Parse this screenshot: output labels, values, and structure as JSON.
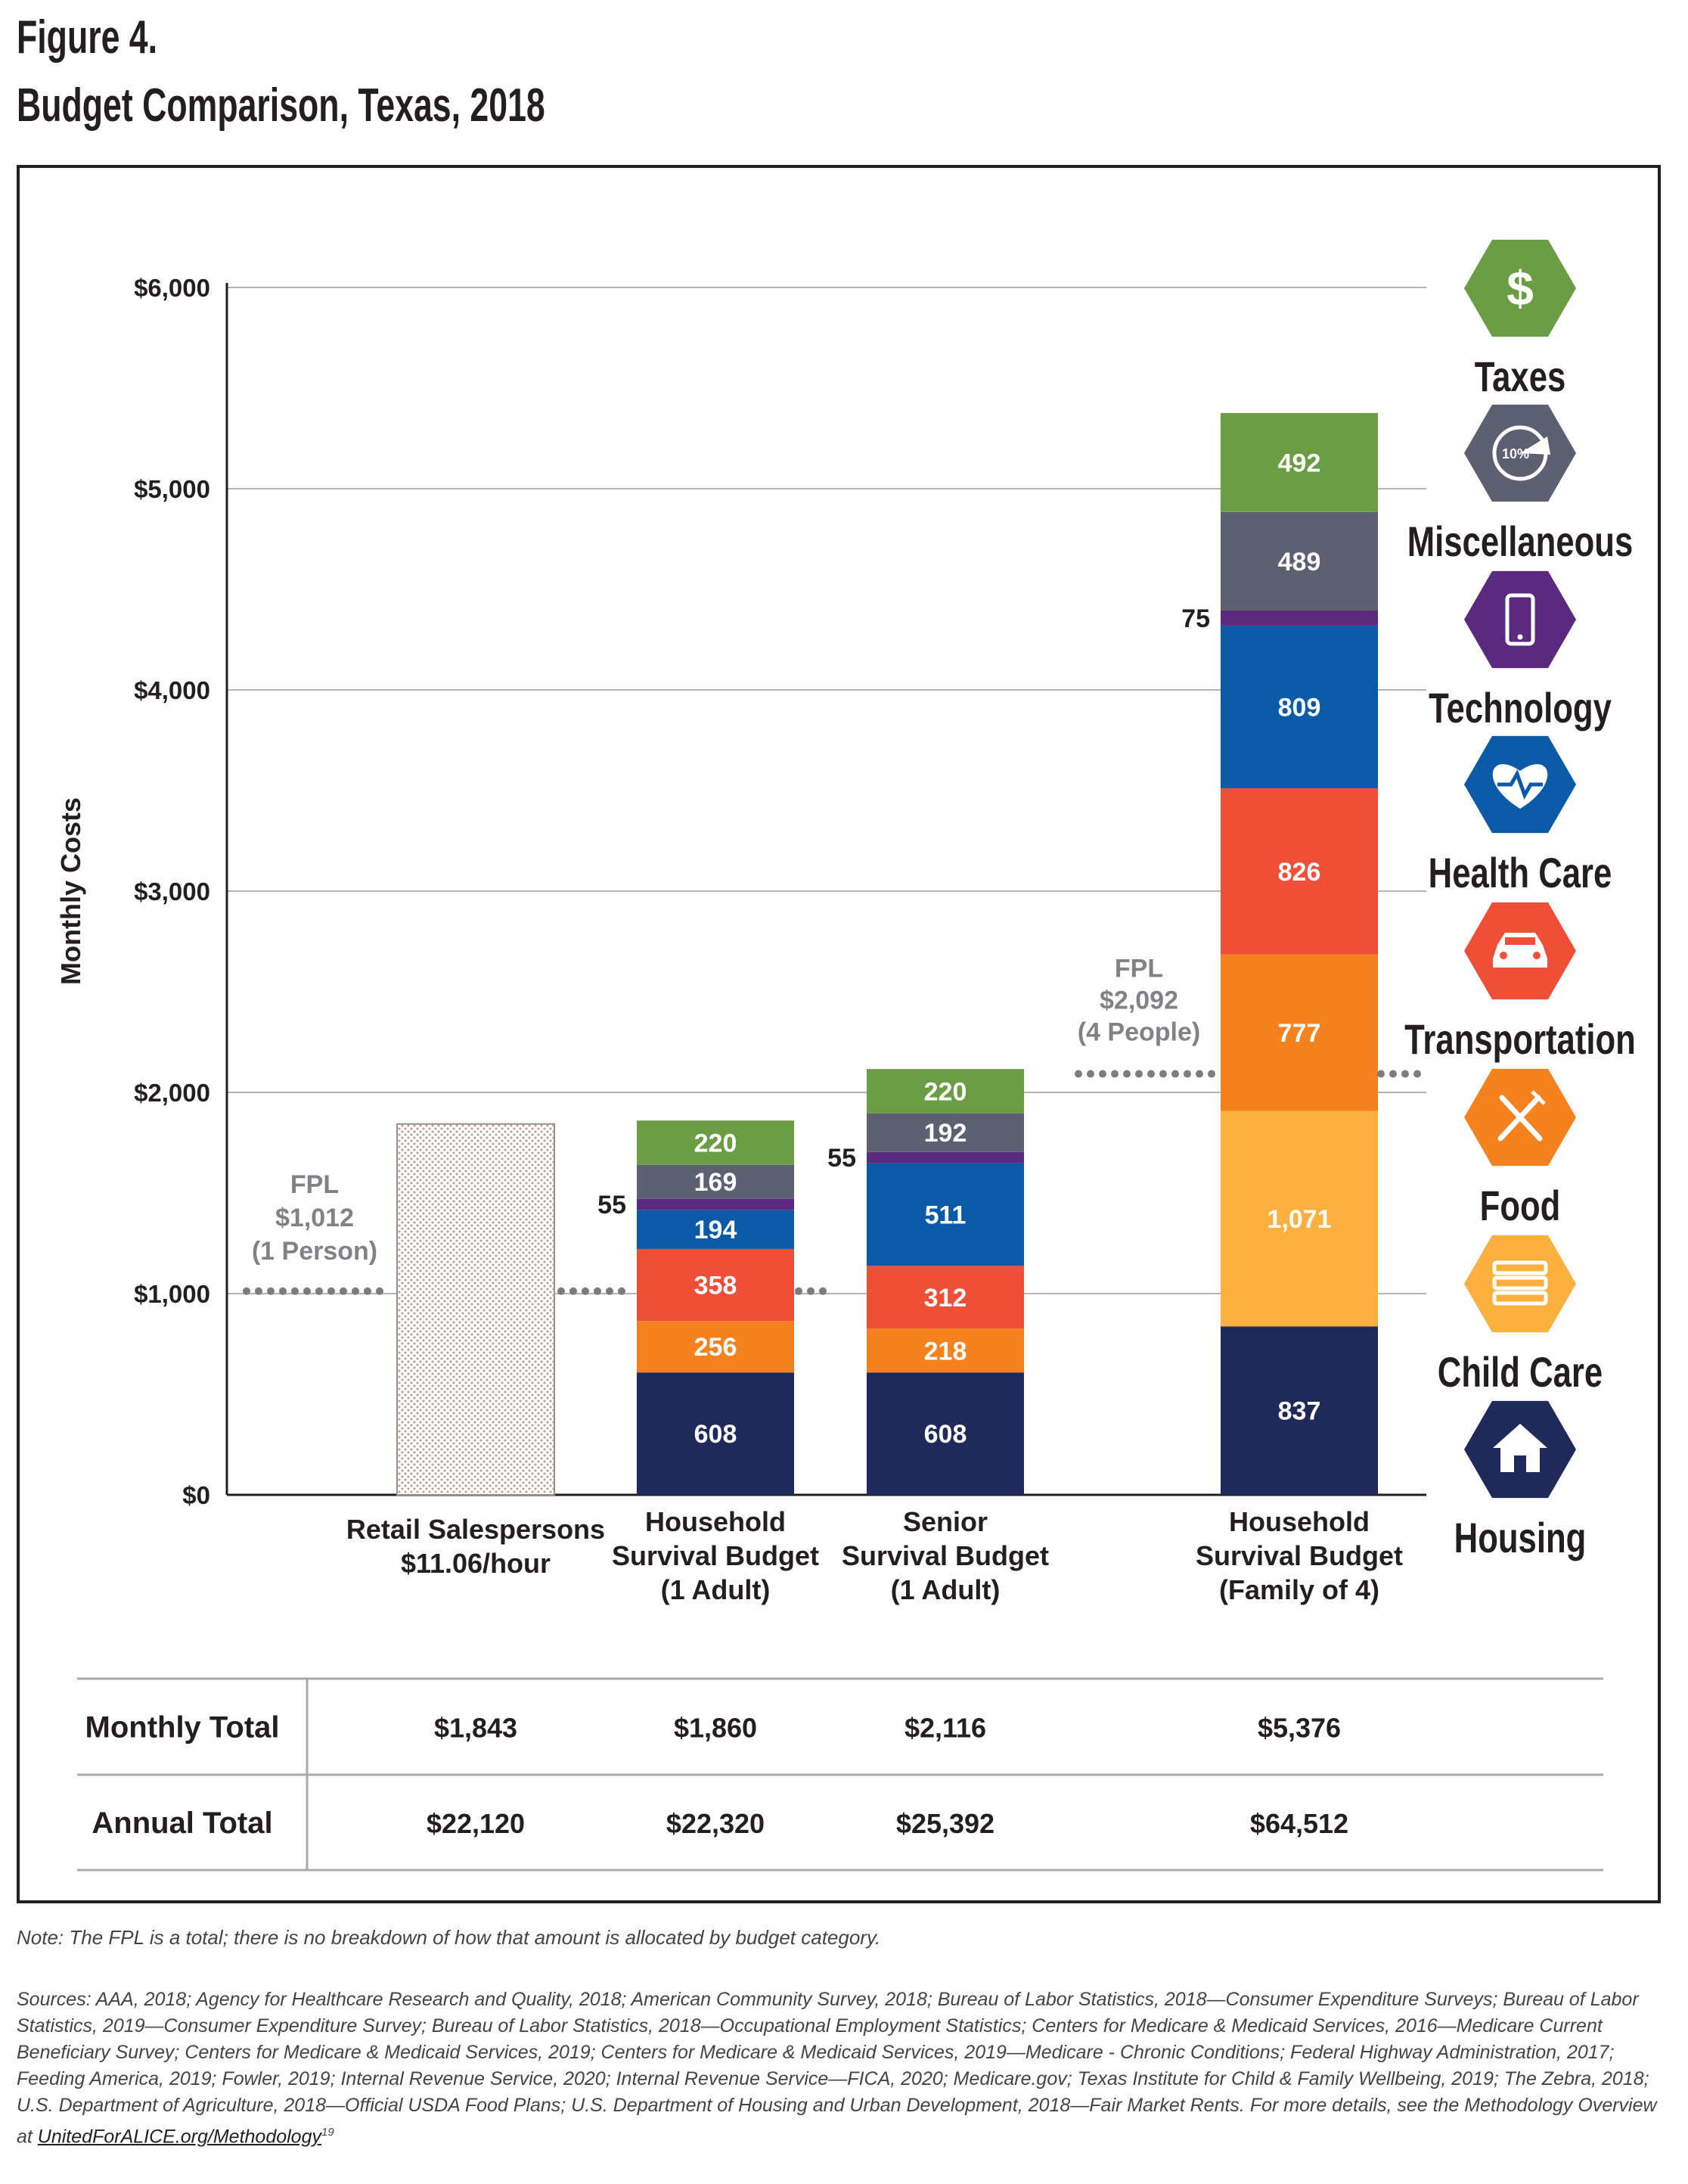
{
  "figure_number": "Figure 4.",
  "title": "Budget Comparison, Texas, 2018",
  "chart_data": {
    "type": "bar",
    "stacked": true,
    "title": "Budget Comparison, Texas, 2018",
    "ylabel": "Monthly Costs",
    "ylim": [
      0,
      6000
    ],
    "yticks": [
      0,
      1000,
      2000,
      3000,
      4000,
      5000,
      6000
    ],
    "ytick_labels": [
      "$0",
      "$1,000",
      "$2,000",
      "$3,000",
      "$4,000",
      "$5,000",
      "$6,000"
    ],
    "grid": true,
    "categories": [
      [
        "Retail Salespersons",
        "$11.06/hour"
      ],
      [
        "Household",
        "Survival Budget",
        "(1 Adult)"
      ],
      [
        "Senior",
        "Survival Budget",
        "(1 Adult)"
      ],
      [
        "Household",
        "Survival Budget",
        "(Family of 4)"
      ]
    ],
    "wage_bar": {
      "category": 0,
      "value": 1843
    },
    "series": [
      {
        "name": "Housing",
        "color": "#1f2a5a",
        "values": [
          null,
          608,
          608,
          837
        ],
        "labels": [
          "",
          "608",
          "608",
          "837"
        ]
      },
      {
        "name": "Child Care",
        "color": "#fbb040",
        "values": [
          null,
          0,
          0,
          1071
        ],
        "labels": [
          "",
          "",
          "",
          "1,071"
        ]
      },
      {
        "name": "Food",
        "color": "#f5821f",
        "values": [
          null,
          256,
          218,
          777
        ],
        "labels": [
          "",
          "256",
          "218",
          "777"
        ]
      },
      {
        "name": "Transportation",
        "color": "#ef4e37",
        "values": [
          null,
          358,
          312,
          826
        ],
        "labels": [
          "",
          "358",
          "312",
          "826"
        ]
      },
      {
        "name": "Health Care",
        "color": "#0b5aa8",
        "values": [
          null,
          194,
          511,
          809
        ],
        "labels": [
          "",
          "194",
          "511",
          "809"
        ]
      },
      {
        "name": "Technology",
        "color": "#5b2a7e",
        "values": [
          null,
          55,
          55,
          75
        ],
        "labels": [
          "",
          "55",
          "55",
          "75"
        ]
      },
      {
        "name": "Miscellaneous",
        "color": "#5c6070",
        "values": [
          null,
          169,
          192,
          489
        ],
        "labels": [
          "",
          "169",
          "192",
          "489"
        ]
      },
      {
        "name": "Taxes",
        "color": "#6b9d45",
        "values": [
          null,
          220,
          220,
          492
        ],
        "labels": [
          "",
          "220",
          "220",
          "492"
        ]
      }
    ],
    "fpl_lines": [
      {
        "label_lines": [
          "FPL",
          "$1,012",
          "(1 Person)"
        ],
        "value": 1012
      },
      {
        "label_lines": [
          "FPL",
          "$2,092",
          "(4 People)"
        ],
        "value": 2092
      }
    ],
    "legend": {
      "placement": "right",
      "items": [
        {
          "name": "Taxes",
          "color": "#6b9d45",
          "icon": "dollar-icon"
        },
        {
          "name": "Miscellaneous",
          "color": "#5c6070",
          "icon": "percent-gauge-icon"
        },
        {
          "name": "Technology",
          "color": "#5b2a7e",
          "icon": "smartphone-icon"
        },
        {
          "name": "Health Care",
          "color": "#0b5aa8",
          "icon": "heartbeat-icon"
        },
        {
          "name": "Transportation",
          "color": "#ef4e37",
          "icon": "car-icon"
        },
        {
          "name": "Food",
          "color": "#f5821f",
          "icon": "fork-knife-icon"
        },
        {
          "name": "Child Care",
          "color": "#fbb040",
          "icon": "books-icon"
        },
        {
          "name": "Housing",
          "color": "#1f2a5a",
          "icon": "house-icon"
        }
      ],
      "icon_text": "10%",
      "dollar_symbol": "$"
    },
    "table": {
      "rows": [
        {
          "label": "Monthly Total",
          "values": [
            "$1,843",
            "$1,860",
            "$2,116",
            "$5,376"
          ]
        },
        {
          "label": "Annual Total",
          "values": [
            "$22,120",
            "$22,320",
            "$25,392",
            "$64,512"
          ]
        }
      ]
    }
  },
  "note": "Note: The FPL is a total; there is no breakdown of how that amount is allocated by budget category.",
  "sources": {
    "text": "Sources: AAA, 2018; Agency for Healthcare Research and Quality, 2018; American Community Survey, 2018; Bureau of Labor Statistics, 2018—Consumer Expenditure Surveys; Bureau of Labor Statistics, 2019—Consumer Expenditure Survey; Bureau of Labor Statistics, 2018—Occupational Employment Statistics; Centers for Medicare & Medicaid Services, 2016—Medicare Current Beneficiary Survey; Centers for Medicare & Medicaid Services, 2019; Centers for Medicare & Medicaid Services, 2019—Medicare - Chronic Conditions; Federal Highway Administration, 2017; Feeding America, 2019; Fowler, 2019; Internal Revenue Service, 2020; Internal Revenue Service—FICA, 2020; Medicare.gov; Texas Institute for Child & Family Wellbeing, 2019; The Zebra, 2018; U.S. Department of Agriculture, 2018—Official USDA Food Plans; U.S. Department of Housing and Urban Development, 2018—Fair Market Rents. For more details, see the Methodology Overview at ",
    "link": "UnitedForALICE.org/Methodology",
    "footnote": "19"
  }
}
